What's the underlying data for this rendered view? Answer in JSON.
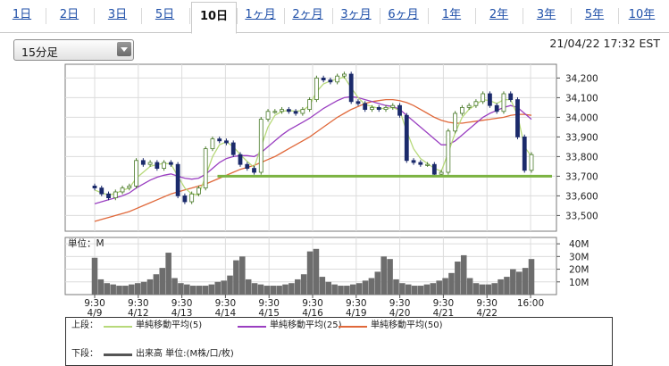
{
  "tabs": [
    {
      "label": "1日"
    },
    {
      "label": "2日"
    },
    {
      "label": "3日"
    },
    {
      "label": "5日"
    },
    {
      "label": "10日"
    },
    {
      "label": "1ヶ月"
    },
    {
      "label": "2ヶ月"
    },
    {
      "label": "3ヶ月"
    },
    {
      "label": "6ヶ月"
    },
    {
      "label": "1年"
    },
    {
      "label": "2年"
    },
    {
      "label": "3年"
    },
    {
      "label": "5年"
    },
    {
      "label": "10年"
    }
  ],
  "active_tab": "10日",
  "interval_select": {
    "value": "15分足"
  },
  "timestamp": "21/04/22 17:32 EST",
  "chart_data": [
    {
      "type": "line",
      "subtype": "candlestick with moving averages",
      "title": "",
      "x_labels": [
        {
          "time": "9:30",
          "date": "4/9"
        },
        {
          "time": "9:30",
          "date": "4/12"
        },
        {
          "time": "9:30",
          "date": "4/13"
        },
        {
          "time": "9:30",
          "date": "4/14"
        },
        {
          "time": "9:30",
          "date": "4/15"
        },
        {
          "time": "9:30",
          "date": "4/16"
        },
        {
          "time": "9:30",
          "date": "4/19"
        },
        {
          "time": "9:30",
          "date": "4/20"
        },
        {
          "time": "9:30",
          "date": "4/21"
        },
        {
          "time": "9:30",
          "date": "4/22"
        },
        {
          "time": "16:00",
          "date": ""
        }
      ],
      "ylim": [
        33420,
        34270
      ],
      "y_ticks": [
        "34,200",
        "34,100",
        "34,000",
        "33,900",
        "33,800",
        "33,700",
        "33,600",
        "33,500"
      ],
      "y_tick_values": [
        34200,
        34100,
        34000,
        33900,
        33800,
        33700,
        33600,
        33500
      ],
      "support_line": 33700,
      "grid": true,
      "price": [
        33640,
        33610,
        33590,
        33620,
        33640,
        33650,
        33780,
        33760,
        33770,
        33740,
        33770,
        33760,
        33600,
        33570,
        33610,
        33640,
        33840,
        33890,
        33880,
        33870,
        33810,
        33760,
        33740,
        33720,
        33990,
        34030,
        34030,
        34040,
        34030,
        34020,
        34040,
        34090,
        34200,
        34190,
        34180,
        34210,
        34220,
        34080,
        34070,
        34040,
        34050,
        34040,
        34050,
        34060,
        34010,
        33780,
        33770,
        33760,
        33760,
        33710,
        33720,
        33930,
        34020,
        34050,
        34060,
        34080,
        34120,
        34060,
        34030,
        34120,
        34090,
        33900,
        33730,
        33810
      ],
      "series": [
        {
          "name": "単純移動平均(5)",
          "color": "#b7d97a",
          "values": [
            33630,
            33615,
            33605,
            33612,
            33628,
            33640,
            33690,
            33720,
            33750,
            33760,
            33765,
            33763,
            33700,
            33640,
            33610,
            33605,
            33700,
            33800,
            33860,
            33875,
            33850,
            33810,
            33775,
            33745,
            33850,
            33950,
            34010,
            34030,
            34035,
            34030,
            34035,
            34060,
            34130,
            34170,
            34185,
            34195,
            34205,
            34150,
            34100,
            34065,
            34055,
            34045,
            34045,
            34050,
            34035,
            33930,
            33840,
            33790,
            33765,
            33740,
            33725,
            33820,
            33920,
            34000,
            34040,
            34065,
            34090,
            34085,
            34070,
            34090,
            34090,
            34010,
            33850,
            33800
          ]
        },
        {
          "name": "単純移動平均(25)",
          "color": "#9a3fc1",
          "values": [
            33560,
            33570,
            33580,
            33590,
            33600,
            33615,
            33640,
            33660,
            33680,
            33695,
            33705,
            33712,
            33700,
            33690,
            33685,
            33690,
            33710,
            33740,
            33770,
            33790,
            33800,
            33805,
            33805,
            33800,
            33820,
            33850,
            33880,
            33910,
            33935,
            33955,
            33975,
            33995,
            34020,
            34045,
            34065,
            34085,
            34100,
            34105,
            34100,
            34090,
            34080,
            34070,
            34060,
            34055,
            34040,
            34010,
            33980,
            33950,
            33920,
            33890,
            33860,
            33860,
            33880,
            33910,
            33940,
            33970,
            34000,
            34020,
            34035,
            34050,
            34060,
            34050,
            34020,
            33990
          ]
        },
        {
          "name": "単純移動平均(50)",
          "color": "#e0683a",
          "values": [
            33470,
            33480,
            33490,
            33500,
            33510,
            33520,
            33535,
            33550,
            33565,
            33580,
            33595,
            33610,
            33620,
            33630,
            33640,
            33650,
            33660,
            33675,
            33690,
            33705,
            33720,
            33735,
            33745,
            33755,
            33770,
            33785,
            33800,
            33820,
            33840,
            33860,
            33880,
            33900,
            33925,
            33950,
            33975,
            34000,
            34020,
            34040,
            34055,
            34070,
            34080,
            34085,
            34090,
            34090,
            34085,
            34075,
            34060,
            34040,
            34020,
            34000,
            33985,
            33975,
            33970,
            33970,
            33975,
            33980,
            33985,
            33990,
            33995,
            34000,
            34010,
            34015,
            34015,
            34010
          ]
        }
      ]
    },
    {
      "type": "bar",
      "title": "",
      "ylabel": "単位：M",
      "ylim": [
        0,
        45
      ],
      "y_ticks": [
        "40M",
        "30M",
        "20M",
        "10M"
      ],
      "y_tick_values": [
        40,
        30,
        20,
        10
      ],
      "values": [
        29,
        12,
        9,
        8,
        7,
        7,
        8,
        9,
        10,
        12,
        16,
        21,
        33,
        13,
        9,
        8,
        7,
        7,
        7,
        8,
        10,
        11,
        15,
        27,
        30,
        12,
        9,
        8,
        7,
        7,
        7,
        8,
        9,
        12,
        16,
        34,
        36,
        14,
        10,
        8,
        7,
        7,
        8,
        9,
        11,
        13,
        18,
        30,
        28,
        12,
        9,
        8,
        7,
        7,
        8,
        9,
        11,
        13,
        17,
        26,
        31,
        13,
        9,
        8,
        8,
        9,
        12,
        14,
        20,
        18,
        21,
        28
      ]
    }
  ],
  "legend": {
    "upper_label": "上段：",
    "lower_label": "下段：",
    "items": [
      {
        "name": "単純移動平均(5)",
        "color": "#b7d97a"
      },
      {
        "name": "単純移動平均(25)",
        "color": "#9a3fc1"
      },
      {
        "name": "単純移動平均(50)",
        "color": "#e0683a"
      }
    ],
    "volume_item": {
      "name": "出来高 単位:(M株/口/枚)",
      "color": "#555555"
    }
  }
}
